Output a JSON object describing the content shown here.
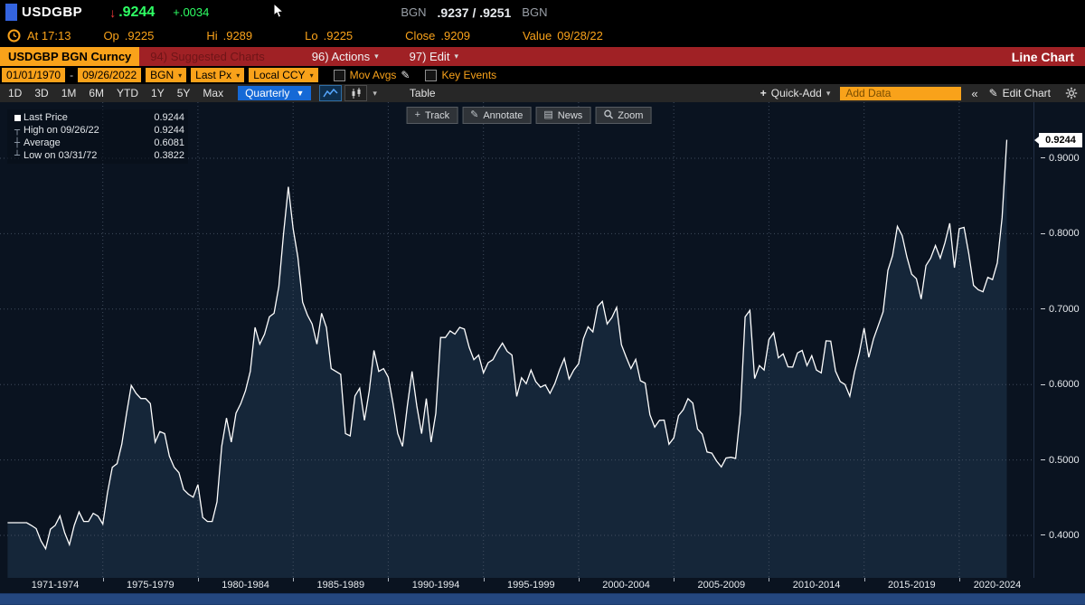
{
  "colors": {
    "amber": "#f9a21a",
    "price_green": "#2eff64",
    "red_bar": "#a02125",
    "chart_bg": "#0a1320",
    "chart_fill": "#152639",
    "chart_line": "#ffffff",
    "grid": "#4d5a6b",
    "period_blue": "#1569d6",
    "scroll_blue": "#1c3c6e"
  },
  "icons": {
    "down_arrow": "↓",
    "chevron_down": "▾",
    "chevron_solid": "▼",
    "dash": "-",
    "pencil": "✎",
    "plus": "+",
    "collapse": "«",
    "news_glyph": "▤",
    "track_glyph": "+"
  },
  "top": {
    "ticker": "USDGBP",
    "price": ".9244",
    "change": "+.0034",
    "source1": "BGN",
    "bid_ask": ".9237 / .9251",
    "source2": "BGN",
    "at": "At 17:13",
    "op_label": "Op",
    "op_value": ".9225",
    "hi_label": "Hi",
    "hi_value": ".9289",
    "lo_label": "Lo",
    "lo_value": ".9225",
    "close_label": "Close",
    "close_value": ".9209",
    "value_label": "Value",
    "value_date": "09/28/22"
  },
  "menubar": {
    "security": "USDGBP BGN Curncy",
    "suggested_charts": "94) Suggested Charts",
    "actions": "96) Actions",
    "edit": "97) Edit",
    "view_title": "Line Chart"
  },
  "toolbar": {
    "date_from": "01/01/1970",
    "date_to": "09/26/2022",
    "source": "BGN",
    "price_type": "Last Px",
    "currency": "Local CCY",
    "mov_avgs": "Mov Avgs",
    "key_events": "Key Events",
    "ranges": [
      "1D",
      "3D",
      "1M",
      "6M",
      "YTD",
      "1Y",
      "5Y",
      "Max"
    ],
    "period": "Quarterly",
    "table": "Table",
    "quick_add": "Quick-Add",
    "add_data_placeholder": "Add Data",
    "edit_chart": "Edit Chart"
  },
  "chart_overlay": {
    "buttons": [
      "Track",
      "Annotate",
      "News",
      "Zoom"
    ],
    "legend": [
      {
        "label": "Last Price",
        "value": "0.9244"
      },
      {
        "glyph": "┬",
        "label": "High on 09/26/22",
        "value": "0.9244"
      },
      {
        "glyph": "┼",
        "label": "Average",
        "value": "0.6081"
      },
      {
        "glyph": "┴",
        "label": "Low on 03/31/72",
        "value": "0.3822"
      }
    ]
  },
  "chart_data": {
    "type": "area",
    "title": "USDGBP BGN Curncy quarterly last price, 01/01/1970 - 09/26/2022",
    "legend_position": "top-left",
    "grid": true,
    "x_start": 1970.0,
    "x_step_years": 0.25,
    "x_domain": [
      1969.6,
      2023.9
    ],
    "y_domain": [
      0.3436,
      0.9743
    ],
    "y_ticks": [
      0.4,
      0.5,
      0.6,
      0.7,
      0.8,
      0.9
    ],
    "y_tick_labels": [
      "0.4000",
      "0.5000",
      "0.6000",
      "0.7000",
      "0.8000",
      "0.9000"
    ],
    "x_gridline_years": [
      1975,
      1980,
      1985,
      1990,
      1995,
      2000,
      2005,
      2010,
      2015,
      2020
    ],
    "x_labels": [
      {
        "text": "1971-1974",
        "center": 1972.5
      },
      {
        "text": "1975-1979",
        "center": 1977.5
      },
      {
        "text": "1980-1984",
        "center": 1982.5
      },
      {
        "text": "1985-1989",
        "center": 1987.5
      },
      {
        "text": "1990-1994",
        "center": 1992.5
      },
      {
        "text": "1995-1999",
        "center": 1997.5
      },
      {
        "text": "2000-2004",
        "center": 2002.5
      },
      {
        "text": "2005-2009",
        "center": 2007.5
      },
      {
        "text": "2010-2014",
        "center": 2012.5
      },
      {
        "text": "2015-2019",
        "center": 2017.5
      },
      {
        "text": "2020-2024",
        "center": 2022.0
      }
    ],
    "last_price": 0.9244,
    "high": {
      "date": "09/26/22",
      "value": 0.9244
    },
    "average": 0.6081,
    "low": {
      "date": "03/31/72",
      "value": 0.3822
    },
    "series": [
      {
        "name": "Last Price",
        "values": [
          0.4167,
          0.4167,
          0.4167,
          0.4167,
          0.4167,
          0.4132,
          0.409,
          0.3926,
          0.3822,
          0.4082,
          0.4132,
          0.4259,
          0.4032,
          0.3876,
          0.4132,
          0.431,
          0.4184,
          0.4184,
          0.4292,
          0.4255,
          0.4149,
          0.4566,
          0.4902,
          0.495,
          0.5208,
          0.5618,
          0.5988,
          0.5882,
          0.5814,
          0.5814,
          0.5747,
          0.5236,
          0.5376,
          0.5348,
          0.5051,
          0.4902,
          0.4831,
          0.4608,
          0.4545,
          0.4505,
          0.4673,
          0.4237,
          0.4184,
          0.4184,
          0.4444,
          0.5181,
          0.5556,
          0.5236,
          0.5618,
          0.5747,
          0.5917,
          0.6173,
          0.6757,
          0.6536,
          0.6667,
          0.6897,
          0.6944,
          0.7299,
          0.8,
          0.8621,
          0.8065,
          0.7692,
          0.7092,
          0.692,
          0.6803,
          0.6536,
          0.6944,
          0.6757,
          0.6211,
          0.6173,
          0.6135,
          0.5348,
          0.5319,
          0.5848,
          0.5952,
          0.5525,
          0.5917,
          0.6452,
          0.6173,
          0.6211,
          0.6098,
          0.5747,
          0.5348,
          0.5181,
          0.5714,
          0.6173,
          0.5714,
          0.5348,
          0.5814,
          0.5236,
          0.5618,
          0.6623,
          0.6623,
          0.6711,
          0.6667,
          0.6757,
          0.6734,
          0.6494,
          0.6329,
          0.639,
          0.6154,
          0.6289,
          0.6329,
          0.6452,
          0.6549,
          0.6439,
          0.639,
          0.5841,
          0.609,
          0.601,
          0.6192,
          0.6039,
          0.5963,
          0.5995,
          0.5882,
          0.601,
          0.6196,
          0.6345,
          0.6072,
          0.6192,
          0.6274,
          0.6605,
          0.6766,
          0.6698,
          0.7032,
          0.7102,
          0.6803,
          0.6887,
          0.7022,
          0.6527,
          0.6365,
          0.6211,
          0.6333,
          0.605,
          0.6017,
          0.5599,
          0.5435,
          0.5525,
          0.5528,
          0.5208,
          0.5291,
          0.5587,
          0.5666,
          0.5811,
          0.5754,
          0.5408,
          0.5342,
          0.5105,
          0.5089,
          0.4985,
          0.4907,
          0.5025,
          0.5035,
          0.502,
          0.5618,
          0.6897,
          0.6983,
          0.6079,
          0.625,
          0.6192,
          0.6596,
          0.6685,
          0.6353,
          0.6406,
          0.6234,
          0.6231,
          0.6418,
          0.6452,
          0.625,
          0.6382,
          0.6192,
          0.6154,
          0.6579,
          0.6575,
          0.6177,
          0.6039,
          0.5999,
          0.5845,
          0.6169,
          0.6418,
          0.6748,
          0.6361,
          0.6609,
          0.6784,
          0.6964,
          0.7513,
          0.771,
          0.8097,
          0.7974,
          0.7692,
          0.7463,
          0.7402,
          0.7133,
          0.7576,
          0.7675,
          0.7843,
          0.7675,
          0.788,
          0.8137,
          0.7547,
          0.8065,
          0.8083,
          0.7739,
          0.7315,
          0.7255,
          0.723,
          0.7421,
          0.739,
          0.7612,
          0.8212,
          0.9244
        ]
      }
    ]
  }
}
